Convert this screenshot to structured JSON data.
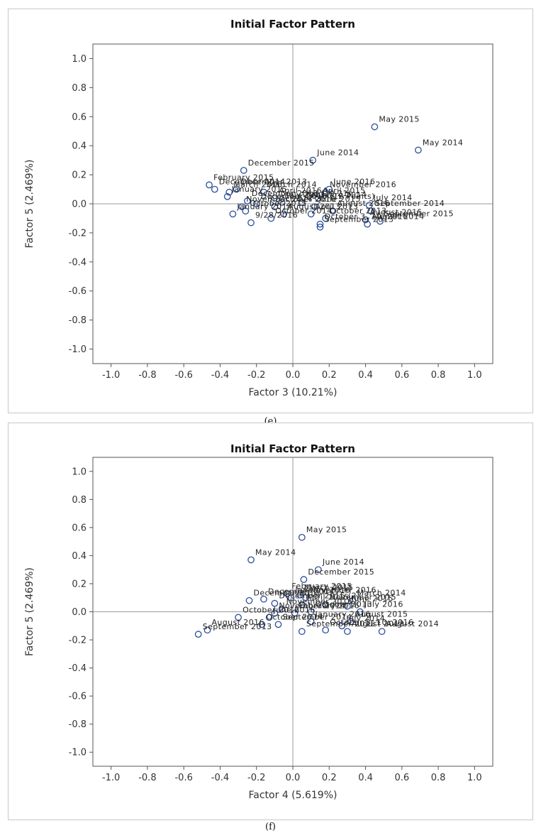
{
  "chart_data": [
    {
      "id": "e",
      "type": "scatter",
      "title": "Initial Factor Pattern",
      "xlabel": "Factor 3 (10.21%)",
      "ylabel": "Factor 5 (2.469%)",
      "xlim": [
        -1.1,
        1.1
      ],
      "ylim": [
        -1.1,
        1.1
      ],
      "xticks": [
        "-1.0",
        "-0.8",
        "-0.6",
        "-0.4",
        "-0.2",
        "0.0",
        "0.2",
        "0.4",
        "0.6",
        "0.8",
        "1.0"
      ],
      "yticks": [
        "-1.0",
        "-0.8",
        "-0.6",
        "-0.4",
        "-0.2",
        "0.0",
        "0.2",
        "0.4",
        "0.6",
        "0.8",
        "1.0"
      ],
      "caption": "(e)",
      "points": [
        {
          "label": "May 2015",
          "x": 0.45,
          "y": 0.53
        },
        {
          "label": "May 2014",
          "x": 0.69,
          "y": 0.37
        },
        {
          "label": "June 2014",
          "x": 0.11,
          "y": 0.3
        },
        {
          "label": "December 2015",
          "x": -0.27,
          "y": 0.23
        },
        {
          "label": "February 2015",
          "x": -0.46,
          "y": 0.13
        },
        {
          "label": "December 2014",
          "x": -0.43,
          "y": 0.1
        },
        {
          "label": "December 2013",
          "x": -0.31,
          "y": 0.1
        },
        {
          "label": "June 2016",
          "x": 0.2,
          "y": 0.1
        },
        {
          "label": "November 2016",
          "x": 0.18,
          "y": 0.08
        },
        {
          "label": "March 2016",
          "x": -0.35,
          "y": 0.08
        },
        {
          "label": "March 2014",
          "x": -0.16,
          "y": 0.08
        },
        {
          "label": "January 2015",
          "x": -0.36,
          "y": 0.05
        },
        {
          "label": "April 2016",
          "x": -0.1,
          "y": 0.04
        },
        {
          "label": "April 2015",
          "x": 0.14,
          "y": 0.04
        },
        {
          "label": "December 2013 (10.21)",
          "x": -0.25,
          "y": 0.02
        },
        {
          "label": "July 2013",
          "x": -0.06,
          "y": 0.01
        },
        {
          "label": "February 2014",
          "x": 0.05,
          "y": 0.01
        },
        {
          "label": "December 2016 (10 Points)",
          "x": -0.2,
          "y": 0.0
        },
        {
          "label": "July 2014",
          "x": 0.42,
          "y": -0.01
        },
        {
          "label": "November 2014",
          "x": -0.28,
          "y": -0.02
        },
        {
          "label": "October 2016",
          "x": -0.1,
          "y": -0.02
        },
        {
          "label": "June 2015",
          "x": 0.12,
          "y": -0.02
        },
        {
          "label": "October 2015",
          "x": -0.26,
          "y": -0.05
        },
        {
          "label": "August 2016",
          "x": 0.22,
          "y": -0.05
        },
        {
          "label": "September 2014",
          "x": 0.43,
          "y": -0.05
        },
        {
          "label": "January 2014",
          "x": -0.33,
          "y": -0.07
        },
        {
          "label": "August 2013",
          "x": -0.05,
          "y": -0.07
        },
        {
          "label": "April 2013",
          "x": 0.1,
          "y": -0.07
        },
        {
          "label": "October 2014",
          "x": -0.12,
          "y": -0.1
        },
        {
          "label": "October 2013",
          "x": 0.18,
          "y": -0.1
        },
        {
          "label": "August 2015",
          "x": 0.4,
          "y": -0.11
        },
        {
          "label": "September 2015",
          "x": 0.48,
          "y": -0.12
        },
        {
          "label": "9/28/2016",
          "x": -0.23,
          "y": -0.13
        },
        {
          "label": "October 3, 10, 2016",
          "x": 0.15,
          "y": -0.14
        },
        {
          "label": "August 2014",
          "x": 0.41,
          "y": -0.14
        },
        {
          "label": "September 2013",
          "x": 0.15,
          "y": -0.16
        }
      ]
    },
    {
      "id": "f",
      "type": "scatter",
      "title": "Initial Factor Pattern",
      "xlabel": "Factor 4 (5.619%)",
      "ylabel": "Factor 5 (2.469%)",
      "xlim": [
        -1.1,
        1.1
      ],
      "ylim": [
        -1.1,
        1.1
      ],
      "xticks": [
        "-1.0",
        "-0.8",
        "-0.6",
        "-0.4",
        "-0.2",
        "0.0",
        "0.2",
        "0.4",
        "0.6",
        "0.8",
        "1.0"
      ],
      "yticks": [
        "-1.0",
        "-0.8",
        "-0.6",
        "-0.4",
        "-0.2",
        "0.0",
        "0.2",
        "0.4",
        "0.6",
        "0.8",
        "1.0"
      ],
      "caption": "(f)",
      "points": [
        {
          "label": "May 2015",
          "x": 0.05,
          "y": 0.53
        },
        {
          "label": "May 2014",
          "x": -0.23,
          "y": 0.37
        },
        {
          "label": "June 2014",
          "x": 0.14,
          "y": 0.3
        },
        {
          "label": "December 2015",
          "x": 0.06,
          "y": 0.23
        },
        {
          "label": "February 2015",
          "x": -0.03,
          "y": 0.13
        },
        {
          "label": "March 2015",
          "x": 0.04,
          "y": 0.12
        },
        {
          "label": "January 2016",
          "x": -0.01,
          "y": 0.1
        },
        {
          "label": "November 2016",
          "x": 0.07,
          "y": 0.1
        },
        {
          "label": "December 2014",
          "x": -0.16,
          "y": 0.09
        },
        {
          "label": "December 2013",
          "x": -0.24,
          "y": 0.08
        },
        {
          "label": "March 2014",
          "x": 0.33,
          "y": 0.08
        },
        {
          "label": "December 2015 (2)",
          "x": -0.1,
          "y": 0.06
        },
        {
          "label": "April 2015",
          "x": 0.05,
          "y": 0.05
        },
        {
          "label": "November 2015",
          "x": 0.18,
          "y": 0.05
        },
        {
          "label": "June 2015",
          "x": 0.3,
          "y": 0.04
        },
        {
          "label": "November 2016",
          "x": -0.06,
          "y": 0.02
        },
        {
          "label": "October 2013",
          "x": 0.1,
          "y": 0.0
        },
        {
          "label": "July 2016",
          "x": 0.37,
          "y": 0.0
        },
        {
          "label": "November 2014",
          "x": -0.1,
          "y": -0.01
        },
        {
          "label": "February 2016",
          "x": 0.01,
          "y": -0.01
        },
        {
          "label": "October 2016",
          "x": -0.3,
          "y": -0.04
        },
        {
          "label": "June 2016",
          "x": -0.13,
          "y": -0.04
        },
        {
          "label": "August 2015",
          "x": 0.32,
          "y": -0.07
        },
        {
          "label": "January 2016",
          "x": 0.1,
          "y": -0.07
        },
        {
          "label": "October 2014",
          "x": -0.17,
          "y": -0.09
        },
        {
          "label": "September 2014",
          "x": -0.08,
          "y": -0.09
        },
        {
          "label": "July 2014",
          "x": 0.27,
          "y": -0.1
        },
        {
          "label": "August 2016",
          "x": -0.47,
          "y": -0.13
        },
        {
          "label": "October 3, 10, 2016",
          "x": 0.18,
          "y": -0.13
        },
        {
          "label": "September 2015",
          "x": 0.05,
          "y": -0.14
        },
        {
          "label": "August 2013",
          "x": 0.3,
          "y": -0.14
        },
        {
          "label": "August 2014",
          "x": 0.49,
          "y": -0.14
        },
        {
          "label": "September 2013",
          "x": -0.52,
          "y": -0.16
        }
      ]
    }
  ]
}
